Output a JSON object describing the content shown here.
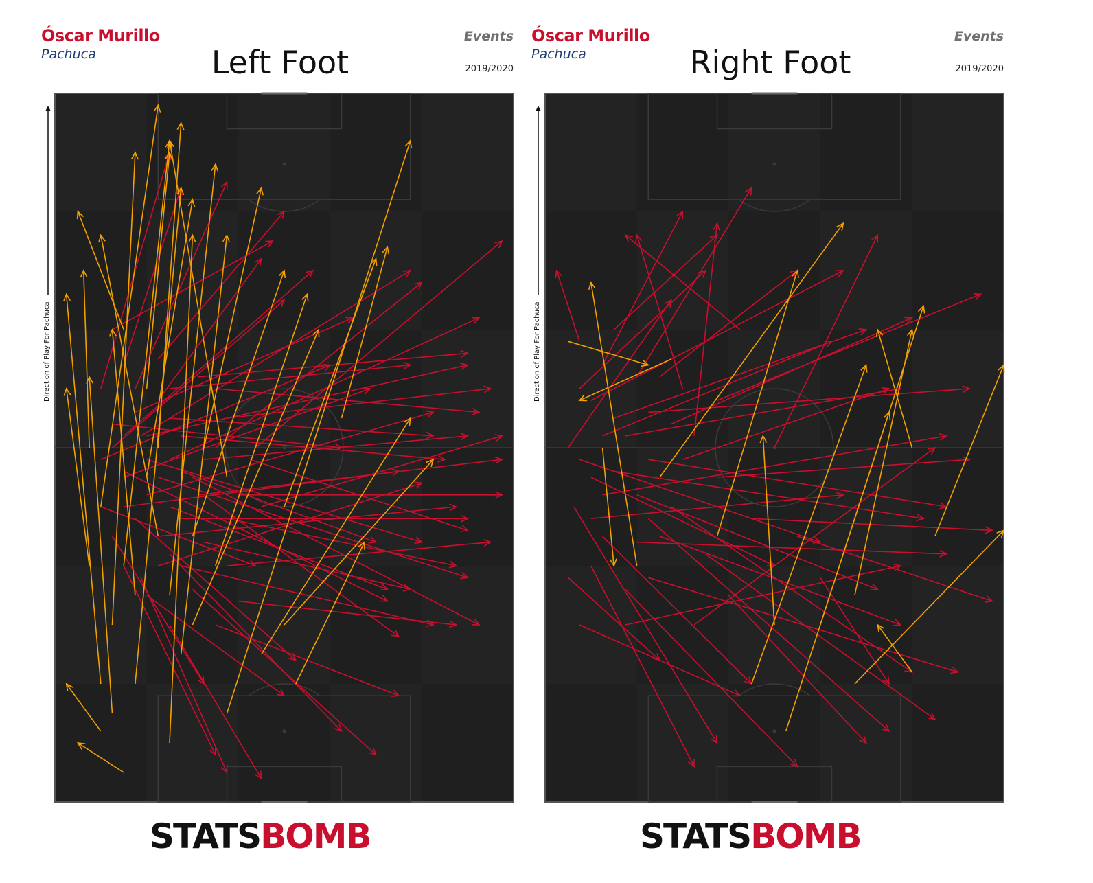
{
  "colors": {
    "pass": "#c8102e",
    "cross": "#f2a100",
    "pitch": "#1f1f1f",
    "lines": "#3a3a3a"
  },
  "branding": {
    "stats": "STATS",
    "bomb": "BOMB"
  },
  "panels": [
    {
      "player": "Óscar Murillo",
      "team": "Pachuca",
      "label": "Events",
      "season": "2019/2020",
      "title": "Left Foot",
      "direction_label": "Direction of Play For Pachuca"
    },
    {
      "player": "Óscar Murillo",
      "team": "Pachuca",
      "label": "Events",
      "season": "2019/2020",
      "title": "Right Foot",
      "direction_label": "Direction of Play For Pachuca"
    }
  ],
  "chart_data": [
    {
      "type": "scatter",
      "title": "Left Foot",
      "pitch": "vertical",
      "xlim": [
        0,
        80
      ],
      "ylim": [
        0,
        120
      ],
      "series": [
        {
          "color": "#c8102e",
          "arrows": [
            [
              10,
              60,
              40,
              85
            ],
            [
              12,
              55,
              55,
              70
            ],
            [
              15,
              62,
              62,
              90
            ],
            [
              8,
              50,
              35,
              40
            ],
            [
              20,
              58,
              74,
              82
            ],
            [
              18,
              45,
              70,
              50
            ],
            [
              25,
              52,
              78,
              58
            ],
            [
              14,
              70,
              30,
              105
            ],
            [
              22,
              40,
              66,
              30
            ],
            [
              16,
              35,
              40,
              18
            ],
            [
              30,
              48,
              70,
              40
            ],
            [
              10,
              80,
              38,
              95
            ],
            [
              20,
              65,
              66,
              62
            ],
            [
              28,
              30,
              60,
              18
            ],
            [
              12,
              50,
              60,
              56
            ],
            [
              35,
              60,
              78,
              95
            ],
            [
              18,
              55,
              72,
              38
            ],
            [
              8,
              70,
              20,
              110
            ],
            [
              25,
              72,
              72,
              76
            ],
            [
              15,
              38,
              30,
              5
            ],
            [
              22,
              48,
              72,
              48
            ],
            [
              30,
              65,
              76,
              70
            ],
            [
              12,
              62,
              45,
              90
            ],
            [
              20,
              42,
              50,
              12
            ],
            [
              26,
              58,
              72,
              62
            ],
            [
              18,
              75,
              40,
              100
            ],
            [
              10,
              45,
              26,
              20
            ],
            [
              32,
              52,
              78,
              52
            ],
            [
              16,
              58,
              64,
              44
            ],
            [
              24,
              36,
              56,
              8
            ],
            [
              14,
              66,
              52,
              82
            ],
            [
              28,
              70,
              74,
              66
            ],
            [
              20,
              50,
              58,
              36
            ],
            [
              12,
              40,
              28,
              8
            ],
            [
              34,
              58,
              72,
              46
            ],
            [
              8,
              58,
              48,
              74
            ],
            [
              22,
              62,
              68,
              58
            ],
            [
              26,
              44,
              62,
              36
            ],
            [
              18,
              68,
              36,
              92
            ],
            [
              30,
              40,
              76,
              44
            ],
            [
              16,
              52,
              66,
              66
            ],
            [
              20,
              30,
              36,
              4
            ],
            [
              12,
              74,
              22,
              104
            ],
            [
              24,
              55,
              74,
              30
            ],
            [
              28,
              60,
              64,
              88
            ],
            [
              14,
              48,
              42,
              24
            ],
            [
              36,
              50,
              78,
              62
            ],
            [
              10,
              64,
              50,
              60
            ],
            [
              22,
              56,
              56,
              44
            ],
            [
              18,
              40,
              64,
              54
            ],
            [
              32,
              34,
              70,
              30
            ],
            [
              20,
              70,
              62,
              74
            ],
            [
              26,
              52,
              60,
              28
            ],
            [
              12,
              56,
              58,
              34
            ],
            [
              16,
              62,
              72,
              74
            ]
          ]
        },
        {
          "color": "#f2a100",
          "arrows": [
            [
              8,
              50,
              18,
              118
            ],
            [
              12,
              40,
              20,
              112
            ],
            [
              6,
              60,
              5,
              90
            ],
            [
              16,
              55,
              24,
              102
            ],
            [
              10,
              30,
              14,
              110
            ],
            [
              20,
              35,
              28,
              108
            ],
            [
              14,
              20,
              22,
              104
            ],
            [
              24,
              45,
              40,
              90
            ],
            [
              30,
              15,
              62,
              112
            ],
            [
              18,
              60,
              22,
              115
            ],
            [
              8,
              20,
              2,
              86
            ],
            [
              12,
              80,
              4,
              100
            ],
            [
              22,
              25,
              30,
              96
            ],
            [
              40,
              50,
              56,
              92
            ],
            [
              26,
              60,
              36,
              104
            ],
            [
              10,
              15,
              6,
              72
            ],
            [
              14,
              35,
              10,
              80
            ],
            [
              20,
              10,
              24,
              96
            ],
            [
              28,
              40,
              44,
              86
            ],
            [
              16,
              70,
              20,
              110
            ],
            [
              6,
              40,
              2,
              70
            ],
            [
              24,
              30,
              46,
              80
            ],
            [
              36,
              25,
              62,
              65
            ],
            [
              42,
              20,
              54,
              44
            ],
            [
              18,
              45,
              8,
              96
            ],
            [
              30,
              55,
              20,
              112
            ],
            [
              50,
              65,
              58,
              94
            ],
            [
              12,
              5,
              4,
              10
            ],
            [
              40,
              30,
              66,
              58
            ],
            [
              8,
              12,
              2,
              20
            ]
          ]
        }
      ]
    },
    {
      "type": "scatter",
      "title": "Right Foot",
      "pitch": "vertical",
      "xlim": [
        0,
        80
      ],
      "ylim": [
        0,
        120
      ],
      "series": [
        {
          "color": "#c8102e",
          "arrows": [
            [
              4,
              60,
              22,
              85
            ],
            [
              8,
              55,
              40,
              40
            ],
            [
              6,
              70,
              28,
              90
            ],
            [
              10,
              45,
              36,
              20
            ],
            [
              14,
              62,
              62,
              70
            ],
            [
              5,
              50,
              30,
              10
            ],
            [
              12,
              65,
              56,
              80
            ],
            [
              18,
              58,
              70,
              50
            ],
            [
              8,
              40,
              26,
              6
            ],
            [
              16,
              52,
              58,
              36
            ],
            [
              6,
              78,
              2,
              90
            ],
            [
              20,
              45,
              62,
              30
            ],
            [
              10,
              62,
              50,
              78
            ],
            [
              14,
              36,
              44,
              6
            ],
            [
              24,
              70,
              16,
              96
            ],
            [
              8,
              48,
              52,
              52
            ],
            [
              18,
              66,
              74,
              70
            ],
            [
              4,
              38,
              20,
              24
            ],
            [
              12,
              56,
              66,
              48
            ],
            [
              22,
              50,
              64,
              22
            ],
            [
              10,
              74,
              24,
              100
            ],
            [
              26,
              62,
              30,
              98
            ],
            [
              6,
              30,
              34,
              18
            ],
            [
              16,
              44,
              70,
              42
            ],
            [
              20,
              72,
              44,
              90
            ],
            [
              30,
              55,
              74,
              58
            ],
            [
              8,
              68,
              52,
              90
            ],
            [
              14,
              30,
              62,
              40
            ],
            [
              28,
              42,
              68,
              14
            ],
            [
              36,
              48,
              78,
              46
            ],
            [
              12,
              80,
              30,
              96
            ],
            [
              18,
              38,
              72,
              22
            ],
            [
              24,
              58,
              60,
              70
            ],
            [
              32,
              35,
              56,
              10
            ],
            [
              10,
              52,
              70,
              62
            ],
            [
              40,
              60,
              58,
              96
            ],
            [
              16,
              72,
              36,
              104
            ],
            [
              26,
              30,
              68,
              60
            ],
            [
              44,
              45,
              78,
              34
            ],
            [
              22,
              64,
              64,
              82
            ],
            [
              34,
              80,
              14,
              96
            ],
            [
              6,
              58,
              48,
              44
            ],
            [
              18,
              48,
              60,
              12
            ],
            [
              30,
              68,
              76,
              86
            ],
            [
              48,
              38,
              60,
              20
            ]
          ]
        },
        {
          "color": "#f2a100",
          "arrows": [
            [
              4,
              78,
              18,
              74
            ],
            [
              10,
              60,
              12,
              40
            ],
            [
              20,
              55,
              52,
              98
            ],
            [
              30,
              45,
              44,
              90
            ],
            [
              36,
              20,
              56,
              74
            ],
            [
              42,
              12,
              60,
              66
            ],
            [
              16,
              40,
              8,
              88
            ],
            [
              48,
              30,
              66,
              84
            ],
            [
              54,
              35,
              64,
              80
            ],
            [
              68,
              45,
              80,
              74
            ],
            [
              64,
              60,
              58,
              80
            ],
            [
              54,
              20,
              80,
              46
            ],
            [
              22,
              75,
              6,
              68
            ],
            [
              40,
              30,
              38,
              62
            ],
            [
              64,
              22,
              58,
              30
            ]
          ]
        }
      ]
    }
  ]
}
